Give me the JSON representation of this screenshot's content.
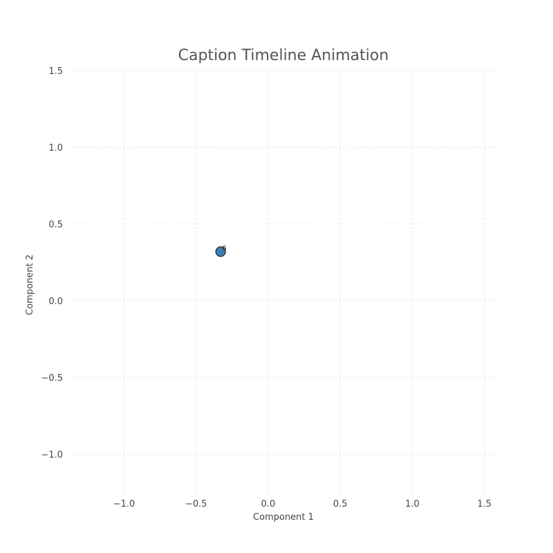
{
  "chart_data": {
    "type": "scatter",
    "title": "Caption Timeline Animation",
    "xlabel": "Component 1",
    "ylabel": "Component 2",
    "xlim": [
      -1.35,
      1.6
    ],
    "ylim": [
      -1.25,
      1.5
    ],
    "xticks": [
      -1.0,
      -0.5,
      0.0,
      0.5,
      1.0,
      1.5
    ],
    "yticks": [
      -1.0,
      -0.5,
      0.0,
      0.5,
      1.0,
      1.5
    ],
    "xtick_labels": [
      "−1.0",
      "−0.5",
      "0.0",
      "0.5",
      "1.0",
      "1.5"
    ],
    "ytick_labels": [
      "−1.0",
      "−0.5",
      "0.0",
      "0.5",
      "1.0",
      "1.5"
    ],
    "grid": true,
    "points": [
      {
        "x": -0.33,
        "y": 0.32,
        "label": "6",
        "color": "#3a7fb5"
      }
    ]
  }
}
